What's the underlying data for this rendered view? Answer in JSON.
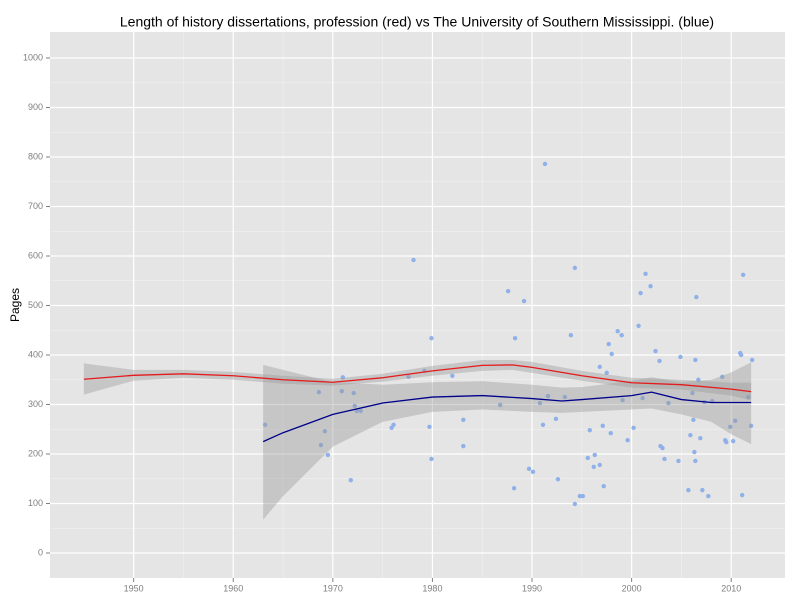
{
  "chart_data": {
    "type": "scatter",
    "title": "Length of history dissertations, profession (red) vs The University of Southern Mississippi. (blue)",
    "y_label": "Pages",
    "xlim": [
      1941.6,
      2015.4
    ],
    "ylim": [
      -50.5,
      1052.5
    ],
    "xticks": [
      1950,
      1960,
      1970,
      1980,
      1990,
      2000,
      2010
    ],
    "yticks": [
      0,
      100,
      200,
      300,
      400,
      500,
      600,
      700,
      800,
      900,
      1000
    ],
    "grid": true,
    "points": {
      "color": "#8fb0e8",
      "x": [
        1963.2,
        1968.6,
        1968.8,
        1969.2,
        1969.5,
        1971,
        1970.9,
        1971.8,
        1972.1,
        1972.2,
        1972.4,
        1972.8,
        1975.9,
        1976.1,
        1977.6,
        1978.1,
        1979.2,
        1979.7,
        1979.9,
        1979.9,
        1982,
        1983.1,
        1983.1,
        1986.8,
        1987.6,
        1988.2,
        1988.3,
        1989.2,
        1989.7,
        1990.1,
        1990.8,
        1991.1,
        1991.3,
        1991.6,
        1992.4,
        1992.6,
        1993.3,
        1993.9,
        1994.3,
        1994.3,
        1994.8,
        1995.1,
        1995.6,
        1995.8,
        1996.2,
        1996.3,
        1996.8,
        1996.8,
        1997.1,
        1997.2,
        1997.5,
        1997.7,
        1997.9,
        1998,
        1998.6,
        1999,
        1999.1,
        1999.6,
        2000.2,
        2000.7,
        2000.9,
        2001.1,
        2001.4,
        2001.9,
        2002.4,
        2002.8,
        2002.9,
        2003.1,
        2003.3,
        2003.7,
        2004.7,
        2004.9,
        2005.7,
        2005.9,
        2006.1,
        2006.2,
        2006.3,
        2006.4,
        2006.4,
        2006.5,
        2006.7,
        2006.9,
        2007.1,
        2007.3,
        2007.7,
        2008.1,
        2009.1,
        2009.4,
        2009.5,
        2009.9,
        2010.2,
        2010.4,
        2010.9,
        2011,
        2011.1,
        2011.2,
        2011.7,
        2012,
        2012.1
      ],
      "values": [
        259,
        325,
        218,
        246,
        198,
        355,
        327,
        147,
        323,
        297,
        287,
        287,
        253,
        259,
        356,
        592,
        368,
        255,
        434,
        190,
        358,
        269,
        216,
        299,
        529,
        131,
        434,
        509,
        170,
        164,
        303,
        259,
        786,
        317,
        271,
        149,
        315,
        440,
        99,
        576,
        115,
        115,
        192,
        248,
        174,
        198,
        178,
        376,
        257,
        135,
        364,
        422,
        242,
        402,
        448,
        440,
        309,
        228,
        253,
        459,
        525,
        313,
        564,
        539,
        408,
        388,
        216,
        212,
        190,
        303,
        186,
        396,
        127,
        238,
        323,
        269,
        204,
        186,
        390,
        517,
        350,
        232,
        127,
        305,
        115,
        307,
        356,
        228,
        224,
        255,
        226,
        267,
        404,
        400,
        117,
        562,
        315,
        257,
        390
      ]
    },
    "fits": [
      {
        "color": "#e41a1c",
        "band_color": "#999999",
        "x": [
          1945,
          1950,
          1955,
          1960,
          1965,
          1970,
          1975,
          1980,
          1985,
          1988,
          1990,
          1995,
          2000,
          2005,
          2010,
          2012
        ],
        "values": [
          351,
          359,
          362,
          358,
          350,
          345,
          354,
          368,
          379,
          380,
          375,
          358,
          344,
          340,
          331,
          326
        ],
        "lower": [
          320,
          348,
          354,
          350,
          342,
          338,
          346,
          358,
          368,
          370,
          364,
          348,
          334,
          330,
          318,
          308
        ],
        "upper": [
          383,
          370,
          370,
          366,
          358,
          352,
          362,
          378,
          390,
          390,
          386,
          368,
          354,
          350,
          344,
          344
        ]
      },
      {
        "color": "#00008b",
        "band_color": "#999999",
        "x": [
          1963,
          1965,
          1970,
          1975,
          1980,
          1985,
          1990,
          1993,
          1995,
          2000,
          2002,
          2005,
          2008,
          2010,
          2012
        ],
        "values": [
          225,
          243,
          280,
          303,
          315,
          318,
          312,
          307,
          310,
          318,
          325,
          310,
          304,
          304,
          304
        ],
        "lower": [
          67,
          115,
          215,
          265,
          285,
          290,
          285,
          283,
          285,
          290,
          292,
          280,
          265,
          240,
          220
        ],
        "upper": [
          380,
          370,
          345,
          340,
          345,
          347,
          340,
          334,
          335,
          348,
          355,
          345,
          350,
          365,
          385
        ]
      }
    ]
  }
}
